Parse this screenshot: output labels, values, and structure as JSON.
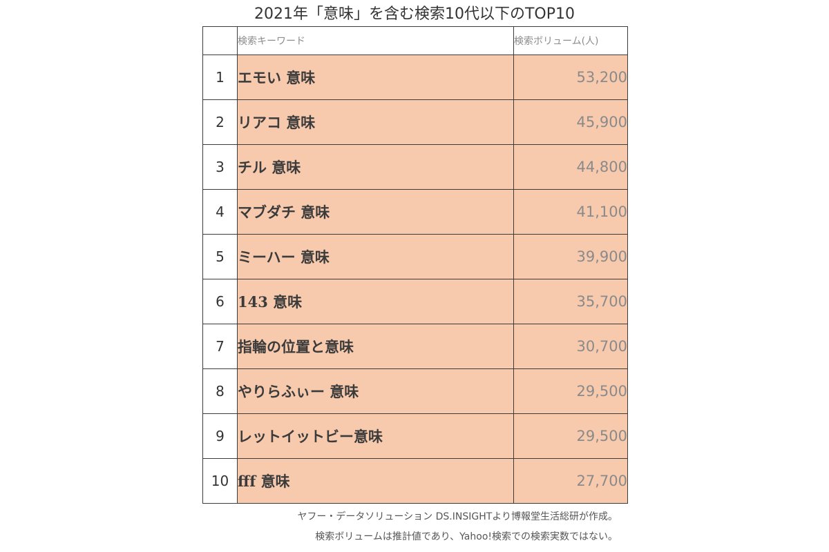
{
  "chart_data": {
    "type": "table",
    "title": "2021年「意味」を含む検索10代以下のTOP10",
    "columns": [
      "",
      "検索キーワード",
      "検索ボリューム(人)"
    ],
    "rows": [
      {
        "rank": "1",
        "keyword": "エモい 意味",
        "volume": "53,200"
      },
      {
        "rank": "2",
        "keyword": "リアコ 意味",
        "volume": "45,900"
      },
      {
        "rank": "3",
        "keyword": "チル 意味",
        "volume": "44,800"
      },
      {
        "rank": "4",
        "keyword": "マブダチ 意味",
        "volume": "41,100"
      },
      {
        "rank": "5",
        "keyword": "ミーハー 意味",
        "volume": "39,900"
      },
      {
        "rank": "6",
        "keyword": "143 意味",
        "volume": "35,700"
      },
      {
        "rank": "7",
        "keyword": "指輪の位置と意味",
        "volume": "30,700"
      },
      {
        "rank": "8",
        "keyword": "やりらふぃー 意味",
        "volume": "29,500"
      },
      {
        "rank": "9",
        "keyword": "レットイットビー意味",
        "volume": "29,500"
      },
      {
        "rank": "10",
        "keyword": "fff 意味",
        "volume": "27,700"
      }
    ],
    "notes": [
      "ヤフー・データソリューション DS.INSIGHTより博報堂生活総研が作成。",
      "検索ボリュームは推計値であり、Yahoo!検索での検索実数ではない。"
    ],
    "highlight_color": "#f7c9ad"
  }
}
